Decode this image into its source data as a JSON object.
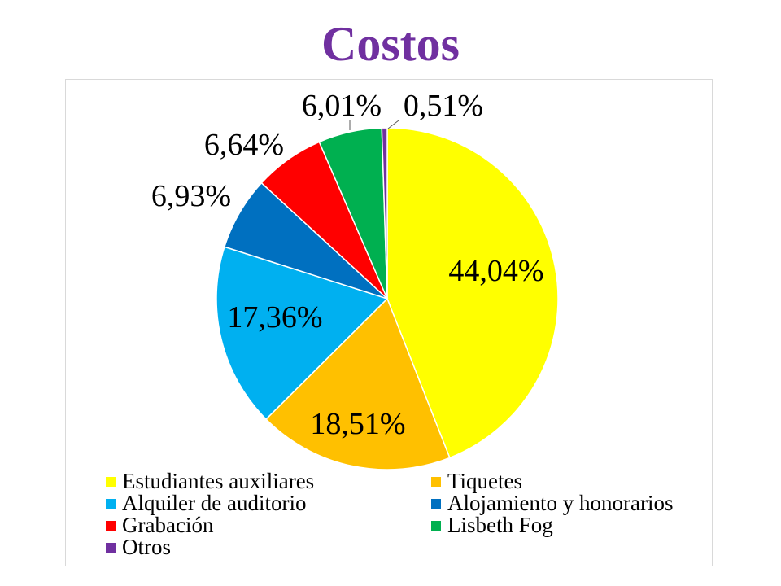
{
  "title": "Costos",
  "title_color": "#7030a0",
  "chart_data": {
    "type": "pie",
    "title": "Costos",
    "slices": [
      {
        "name": "Estudiantes auxiliares",
        "value": 44.04,
        "label": "44,04%",
        "color": "#ffff00"
      },
      {
        "name": "Tiquetes",
        "value": 18.51,
        "label": "18,51%",
        "color": "#ffc000"
      },
      {
        "name": "Alquiler de auditorio",
        "value": 17.36,
        "label": "17,36%",
        "color": "#00b0f0"
      },
      {
        "name": "Alojamiento y honorarios",
        "value": 6.93,
        "label": "6,93%",
        "color": "#0070c0"
      },
      {
        "name": "Grabación",
        "value": 6.64,
        "label": "6,64%",
        "color": "#ff0000"
      },
      {
        "name": "Lisbeth Fog",
        "value": 6.01,
        "label": "6,01%",
        "color": "#00b050"
      },
      {
        "name": "Otros",
        "value": 0.51,
        "label": "0,51%",
        "color": "#7030a0"
      }
    ],
    "legend_position": "bottom"
  }
}
